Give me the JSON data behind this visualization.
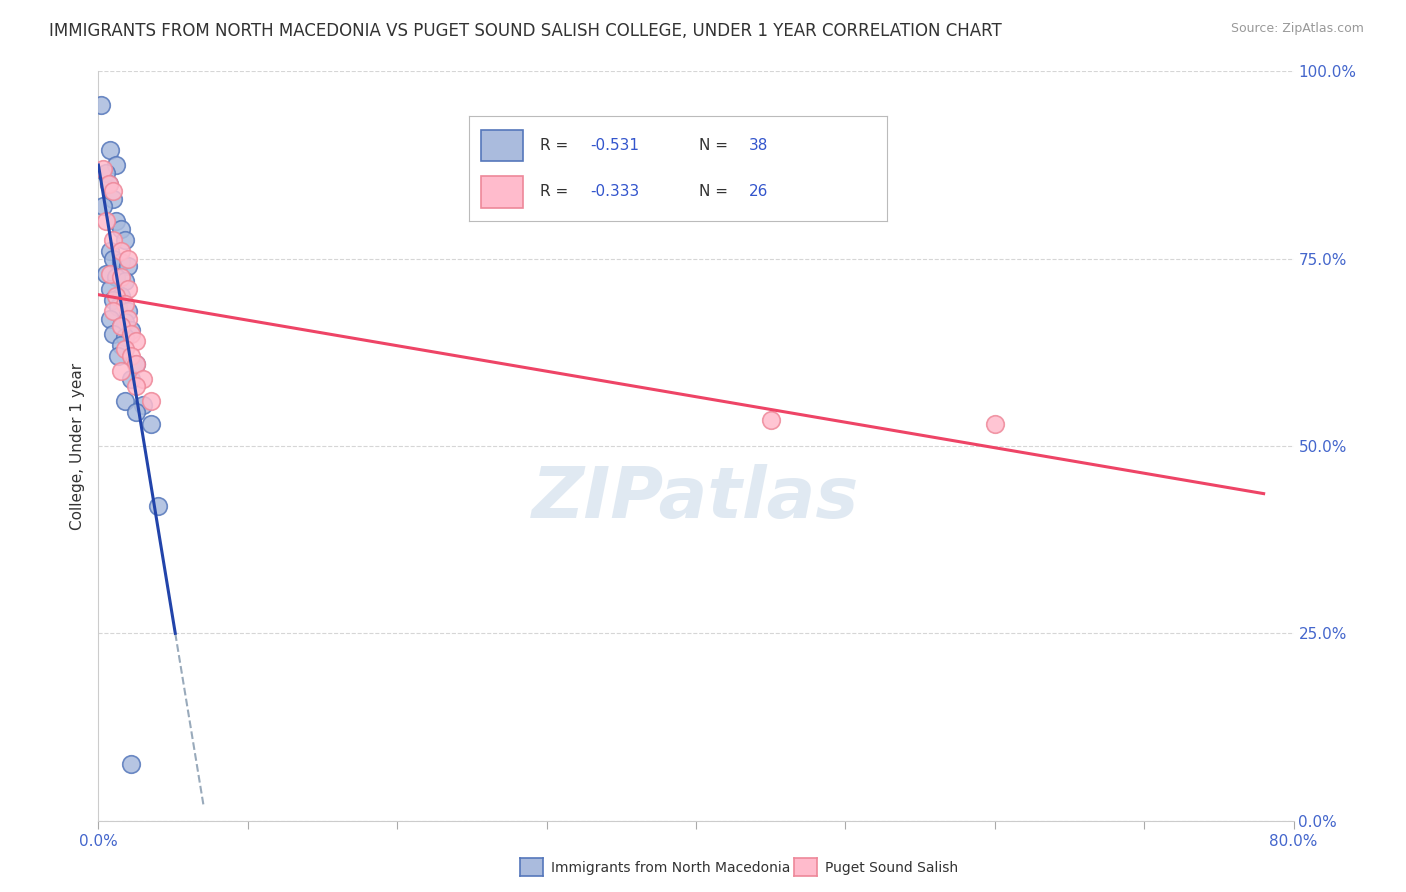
{
  "title": "IMMIGRANTS FROM NORTH MACEDONIA VS PUGET SOUND SALISH COLLEGE, UNDER 1 YEAR CORRELATION CHART",
  "source": "Source: ZipAtlas.com",
  "ylabel": "College, Under 1 year",
  "xlim": [
    0.0,
    0.8
  ],
  "ylim": [
    0.0,
    1.0
  ],
  "ytick_values": [
    0.0,
    0.25,
    0.5,
    0.75,
    1.0
  ],
  "xtick_values": [
    0.0,
    0.1,
    0.2,
    0.3,
    0.4,
    0.5,
    0.6,
    0.7,
    0.8
  ],
  "background_color": "#ffffff",
  "watermark": "ZIPatlas",
  "legend_blue_label": "Immigrants from North Macedonia",
  "legend_pink_label": "Puget Sound Salish",
  "blue_R": "-0.531",
  "blue_N": "38",
  "pink_R": "-0.333",
  "pink_N": "26",
  "blue_color": "#aabbdd",
  "pink_color": "#ffbbcc",
  "blue_edge_color": "#5577bb",
  "pink_edge_color": "#ee8899",
  "blue_line_color": "#2244aa",
  "pink_line_color": "#ee4466",
  "grid_color": "#cccccc",
  "title_fontsize": 12,
  "source_fontsize": 9,
  "axis_label_fontsize": 11,
  "tick_fontsize": 11,
  "legend_fontsize": 12,
  "watermark_fontsize": 52,
  "watermark_color": "#c8d8e8",
  "watermark_alpha": 0.55,
  "blue_scatter": [
    [
      0.002,
      0.955
    ],
    [
      0.008,
      0.895
    ],
    [
      0.012,
      0.875
    ],
    [
      0.005,
      0.865
    ],
    [
      0.007,
      0.85
    ],
    [
      0.01,
      0.83
    ],
    [
      0.003,
      0.82
    ],
    [
      0.012,
      0.8
    ],
    [
      0.015,
      0.79
    ],
    [
      0.018,
      0.775
    ],
    [
      0.008,
      0.76
    ],
    [
      0.01,
      0.75
    ],
    [
      0.015,
      0.745
    ],
    [
      0.02,
      0.74
    ],
    [
      0.005,
      0.73
    ],
    [
      0.012,
      0.725
    ],
    [
      0.018,
      0.72
    ],
    [
      0.008,
      0.71
    ],
    [
      0.015,
      0.7
    ],
    [
      0.01,
      0.695
    ],
    [
      0.013,
      0.685
    ],
    [
      0.02,
      0.68
    ],
    [
      0.008,
      0.67
    ],
    [
      0.018,
      0.665
    ],
    [
      0.015,
      0.66
    ],
    [
      0.022,
      0.655
    ],
    [
      0.01,
      0.65
    ],
    [
      0.018,
      0.645
    ],
    [
      0.015,
      0.635
    ],
    [
      0.013,
      0.62
    ],
    [
      0.025,
      0.61
    ],
    [
      0.022,
      0.59
    ],
    [
      0.018,
      0.56
    ],
    [
      0.03,
      0.555
    ],
    [
      0.025,
      0.545
    ],
    [
      0.035,
      0.53
    ],
    [
      0.022,
      0.075
    ],
    [
      0.04,
      0.42
    ]
  ],
  "pink_scatter": [
    [
      0.003,
      0.87
    ],
    [
      0.007,
      0.85
    ],
    [
      0.01,
      0.84
    ],
    [
      0.005,
      0.8
    ],
    [
      0.01,
      0.775
    ],
    [
      0.015,
      0.76
    ],
    [
      0.02,
      0.75
    ],
    [
      0.008,
      0.73
    ],
    [
      0.015,
      0.725
    ],
    [
      0.02,
      0.71
    ],
    [
      0.012,
      0.7
    ],
    [
      0.018,
      0.69
    ],
    [
      0.01,
      0.68
    ],
    [
      0.02,
      0.67
    ],
    [
      0.015,
      0.66
    ],
    [
      0.022,
      0.65
    ],
    [
      0.025,
      0.64
    ],
    [
      0.018,
      0.63
    ],
    [
      0.022,
      0.62
    ],
    [
      0.025,
      0.61
    ],
    [
      0.015,
      0.6
    ],
    [
      0.03,
      0.59
    ],
    [
      0.025,
      0.58
    ],
    [
      0.035,
      0.56
    ],
    [
      0.45,
      0.535
    ],
    [
      0.6,
      0.53
    ]
  ]
}
